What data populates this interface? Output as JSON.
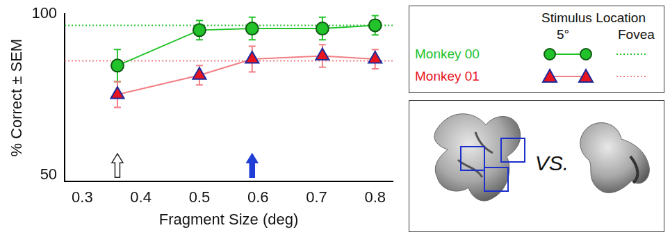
{
  "chart_data": {
    "type": "line",
    "x_label": "Fragment Size (deg)",
    "y_label": "% Correct ± SEM",
    "x": [
      0.36,
      0.5,
      0.59,
      0.71,
      0.8
    ],
    "xlim": [
      0.27,
      0.83
    ],
    "xticks": [
      0.3,
      0.4,
      0.5,
      0.6,
      0.7,
      0.8
    ],
    "ylim": [
      48,
      100
    ],
    "yticks": [
      50,
      100
    ],
    "grid": false,
    "legend": "right",
    "legend_title": "Stimulus Location",
    "legend_columns": [
      "5°",
      "Fovea"
    ],
    "series": [
      {
        "name": "Monkey 00",
        "color": "#22c22a",
        "marker": "circle",
        "line_style": "solid",
        "values": [
          84,
          95,
          95.5,
          95.5,
          96.5
        ],
        "errors": [
          5,
          3,
          3.5,
          3.5,
          3
        ],
        "fovea": 96.5
      },
      {
        "name": "Monkey 01",
        "color": "#e8141e",
        "marker": "triangle",
        "line_style": "solid",
        "values": [
          75,
          81,
          86,
          87,
          86
        ],
        "errors": [
          4,
          3,
          4,
          3.5,
          3
        ],
        "fovea": 85.5
      }
    ],
    "arrows": [
      {
        "x": 0.36,
        "color": "#ffffff"
      },
      {
        "x": 0.59,
        "color": "#1f3fd6"
      }
    ],
    "inset_text": "VS."
  }
}
